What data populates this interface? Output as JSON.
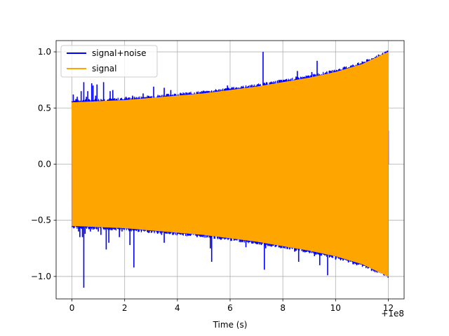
{
  "chart_data": {
    "type": "line",
    "title": "",
    "xlabel": "Time (s)",
    "ylabel": "",
    "x_offset_label": "+1e8",
    "xlim": [
      -0.6,
      12.6
    ],
    "ylim": [
      -1.2,
      1.1
    ],
    "x_ticks": [
      0,
      2,
      4,
      6,
      8,
      10,
      12
    ],
    "x_tick_labels": [
      "0",
      "2",
      "4",
      "6",
      "8",
      "10",
      "12"
    ],
    "y_ticks": [
      -1.0,
      -0.5,
      0.0,
      0.5,
      1.0
    ],
    "y_tick_labels": [
      "−1.0",
      "−0.5",
      "0.0",
      "0.5",
      "1.0"
    ],
    "grid": true,
    "legend_position": "top-left",
    "series": [
      {
        "name": "signal+noise",
        "color": "#0000ff",
        "envelope": {
          "x": [
            0,
            1,
            2,
            3,
            4,
            5,
            6,
            7,
            8,
            9,
            10,
            11,
            12
          ],
          "upper": [
            0.56,
            0.57,
            0.58,
            0.6,
            0.62,
            0.64,
            0.67,
            0.7,
            0.74,
            0.78,
            0.83,
            0.9,
            1.0
          ],
          "lower": [
            -0.56,
            -0.57,
            -0.58,
            -0.6,
            -0.62,
            -0.64,
            -0.67,
            -0.7,
            -0.74,
            -0.78,
            -0.83,
            -0.9,
            -1.0
          ]
        },
        "spikes": [
          {
            "x": 0.05,
            "y": 0.62
          },
          {
            "x": 0.1,
            "y": -0.38
          },
          {
            "x": 0.2,
            "y": 0.6
          },
          {
            "x": 0.3,
            "y": -0.65
          },
          {
            "x": 0.45,
            "y": 0.73
          },
          {
            "x": 0.5,
            "y": -0.62
          },
          {
            "x": 0.6,
            "y": 0.65
          },
          {
            "x": 0.7,
            "y": -0.6
          },
          {
            "x": 0.8,
            "y": 0.7
          },
          {
            "x": 0.9,
            "y": 0.61
          },
          {
            "x": 1.0,
            "y": -0.6
          },
          {
            "x": 1.2,
            "y": 0.73
          },
          {
            "x": 1.4,
            "y": -0.7
          },
          {
            "x": 1.55,
            "y": 0.66
          },
          {
            "x": 1.9,
            "y": -0.6
          },
          {
            "x": 2.05,
            "y": 0.6
          },
          {
            "x": 2.3,
            "y": 0.61
          },
          {
            "x": 2.7,
            "y": 0.63
          },
          {
            "x": 3.1,
            "y": 0.69
          },
          {
            "x": 3.4,
            "y": -0.63
          },
          {
            "x": 3.5,
            "y": 0.68
          },
          {
            "x": 4.0,
            "y": -0.58
          },
          {
            "x": 4.3,
            "y": 0.6
          },
          {
            "x": 4.6,
            "y": 0.58
          },
          {
            "x": 5.2,
            "y": -0.64
          },
          {
            "x": 5.4,
            "y": 0.62
          },
          {
            "x": 5.8,
            "y": -0.62
          },
          {
            "x": 6.0,
            "y": 0.66
          },
          {
            "x": 6.2,
            "y": -0.63
          },
          {
            "x": 6.5,
            "y": 0.63
          },
          {
            "x": 6.9,
            "y": 0.63
          },
          {
            "x": 7.2,
            "y": -0.67
          },
          {
            "x": 7.35,
            "y": -0.75
          },
          {
            "x": 7.6,
            "y": 0.71
          },
          {
            "x": 7.9,
            "y": -0.72
          },
          {
            "x": 8.1,
            "y": 0.75
          },
          {
            "x": 8.3,
            "y": -0.74
          },
          {
            "x": 8.5,
            "y": 0.78
          },
          {
            "x": 8.8,
            "y": -0.78
          },
          {
            "x": 9.0,
            "y": 0.78
          },
          {
            "x": 9.2,
            "y": -0.82
          },
          {
            "x": 9.5,
            "y": -0.8
          },
          {
            "x": 10.0,
            "y": -0.85
          },
          {
            "x": 10.4,
            "y": 0.85
          },
          {
            "x": 10.8,
            "y": -0.9
          },
          {
            "x": 11.3,
            "y": 0.92
          },
          {
            "x": 11.7,
            "y": 0.96
          },
          {
            "x": 12.0,
            "y": 0.3
          }
        ],
        "peaks": [
          {
            "x": 0.15,
            "y": 0.58
          },
          {
            "x": 0.25,
            "y": -0.6
          },
          {
            "x": 0.35,
            "y": 0.65
          },
          {
            "x": 0.4,
            "y": -0.65
          },
          {
            "x": 0.45,
            "y": -1.1
          },
          {
            "x": 0.55,
            "y": 0.6
          },
          {
            "x": 0.75,
            "y": 0.72
          },
          {
            "x": 0.95,
            "y": 0.71
          },
          {
            "x": 1.1,
            "y": -0.63
          },
          {
            "x": 1.3,
            "y": -0.76
          },
          {
            "x": 1.45,
            "y": 0.65
          },
          {
            "x": 1.8,
            "y": -0.65
          },
          {
            "x": 2.2,
            "y": -0.72
          },
          {
            "x": 2.35,
            "y": -0.92
          },
          {
            "x": 3.25,
            "y": -0.62
          },
          {
            "x": 3.5,
            "y": -0.7
          },
          {
            "x": 3.75,
            "y": 0.66
          },
          {
            "x": 4.15,
            "y": -0.6
          },
          {
            "x": 4.75,
            "y": -0.65
          },
          {
            "x": 5.25,
            "y": -0.75
          },
          {
            "x": 5.3,
            "y": -0.87
          },
          {
            "x": 5.9,
            "y": 0.7
          },
          {
            "x": 6.6,
            "y": -0.74
          },
          {
            "x": 7.25,
            "y": 1.0
          },
          {
            "x": 7.3,
            "y": -0.94
          },
          {
            "x": 7.85,
            "y": 0.75
          },
          {
            "x": 8.45,
            "y": -0.78
          },
          {
            "x": 8.6,
            "y": -0.87
          },
          {
            "x": 8.55,
            "y": 0.83
          },
          {
            "x": 9.1,
            "y": 0.82
          },
          {
            "x": 9.3,
            "y": 0.92
          },
          {
            "x": 9.4,
            "y": -0.9
          },
          {
            "x": 9.7,
            "y": -0.99
          }
        ]
      },
      {
        "name": "signal",
        "color": "#ffa500",
        "envelope": {
          "x": [
            0,
            1,
            2,
            3,
            4,
            5,
            6,
            7,
            8,
            9,
            10,
            11,
            12
          ],
          "upper": [
            0.55,
            0.56,
            0.57,
            0.59,
            0.61,
            0.63,
            0.66,
            0.69,
            0.73,
            0.77,
            0.82,
            0.89,
            1.0
          ],
          "lower": [
            -0.55,
            -0.56,
            -0.57,
            -0.59,
            -0.61,
            -0.63,
            -0.66,
            -0.69,
            -0.73,
            -0.77,
            -0.82,
            -0.89,
            -1.0
          ]
        }
      }
    ]
  }
}
